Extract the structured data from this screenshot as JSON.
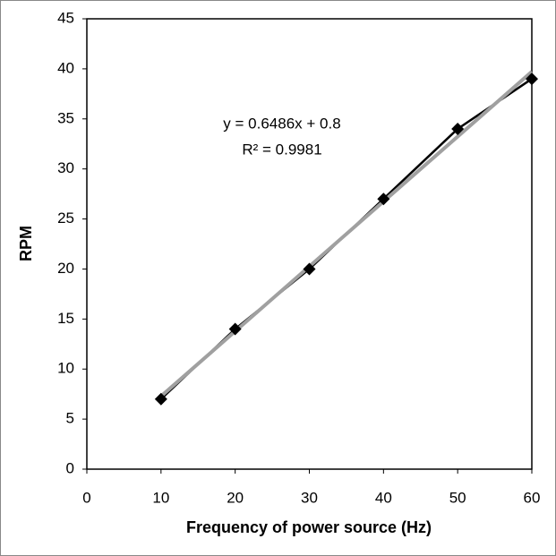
{
  "chart_data": {
    "type": "scatter",
    "x_label": "Frequency of power source (Hz)",
    "y_label": "RPM",
    "annotations": [
      "y = 0.6486x + 0.8",
      "R² = 0.9981"
    ],
    "series": [
      {
        "color": "#000000",
        "x": [
          10,
          20,
          30,
          40,
          50,
          60
        ],
        "values": [
          7,
          14,
          20,
          27,
          34,
          39
        ]
      },
      {
        "color": "#a0a0a0",
        "x": [
          10,
          60
        ],
        "values": [
          7.286,
          39.716
        ]
      }
    ],
    "xlim": [
      0,
      60
    ],
    "xticks": [
      0,
      10,
      20,
      30,
      40,
      50,
      60
    ],
    "ylim": [
      0,
      45
    ],
    "yticks": [
      0,
      5,
      10,
      15,
      20,
      25,
      30,
      35,
      40,
      45
    ],
    "grid": false
  }
}
